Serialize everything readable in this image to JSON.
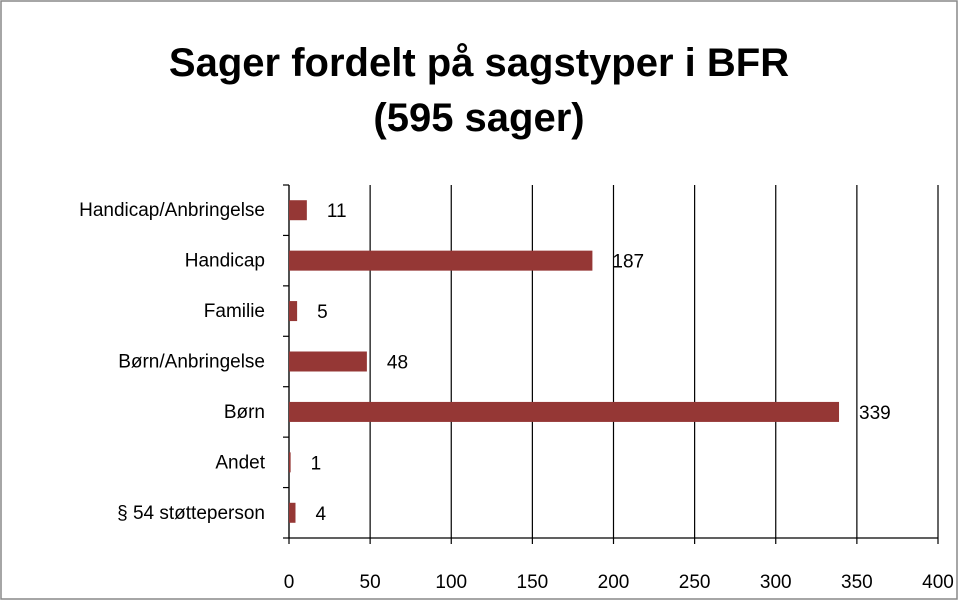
{
  "chart_data": {
    "type": "bar",
    "orientation": "horizontal",
    "title": "Sager fordelt på sagstyper i BFR (595 sager)",
    "categories": [
      "§ 54 støtteperson",
      "Andet",
      "Børn",
      "Børn/Anbringelse",
      "Familie",
      "Handicap",
      "Handicap/Anbringelse"
    ],
    "values": [
      4,
      1,
      339,
      48,
      5,
      187,
      11
    ],
    "color": "#953735",
    "xlim": [
      0,
      400
    ],
    "xticks": [
      0,
      50,
      100,
      150,
      200,
      250,
      300,
      350,
      400
    ],
    "grid": true
  }
}
